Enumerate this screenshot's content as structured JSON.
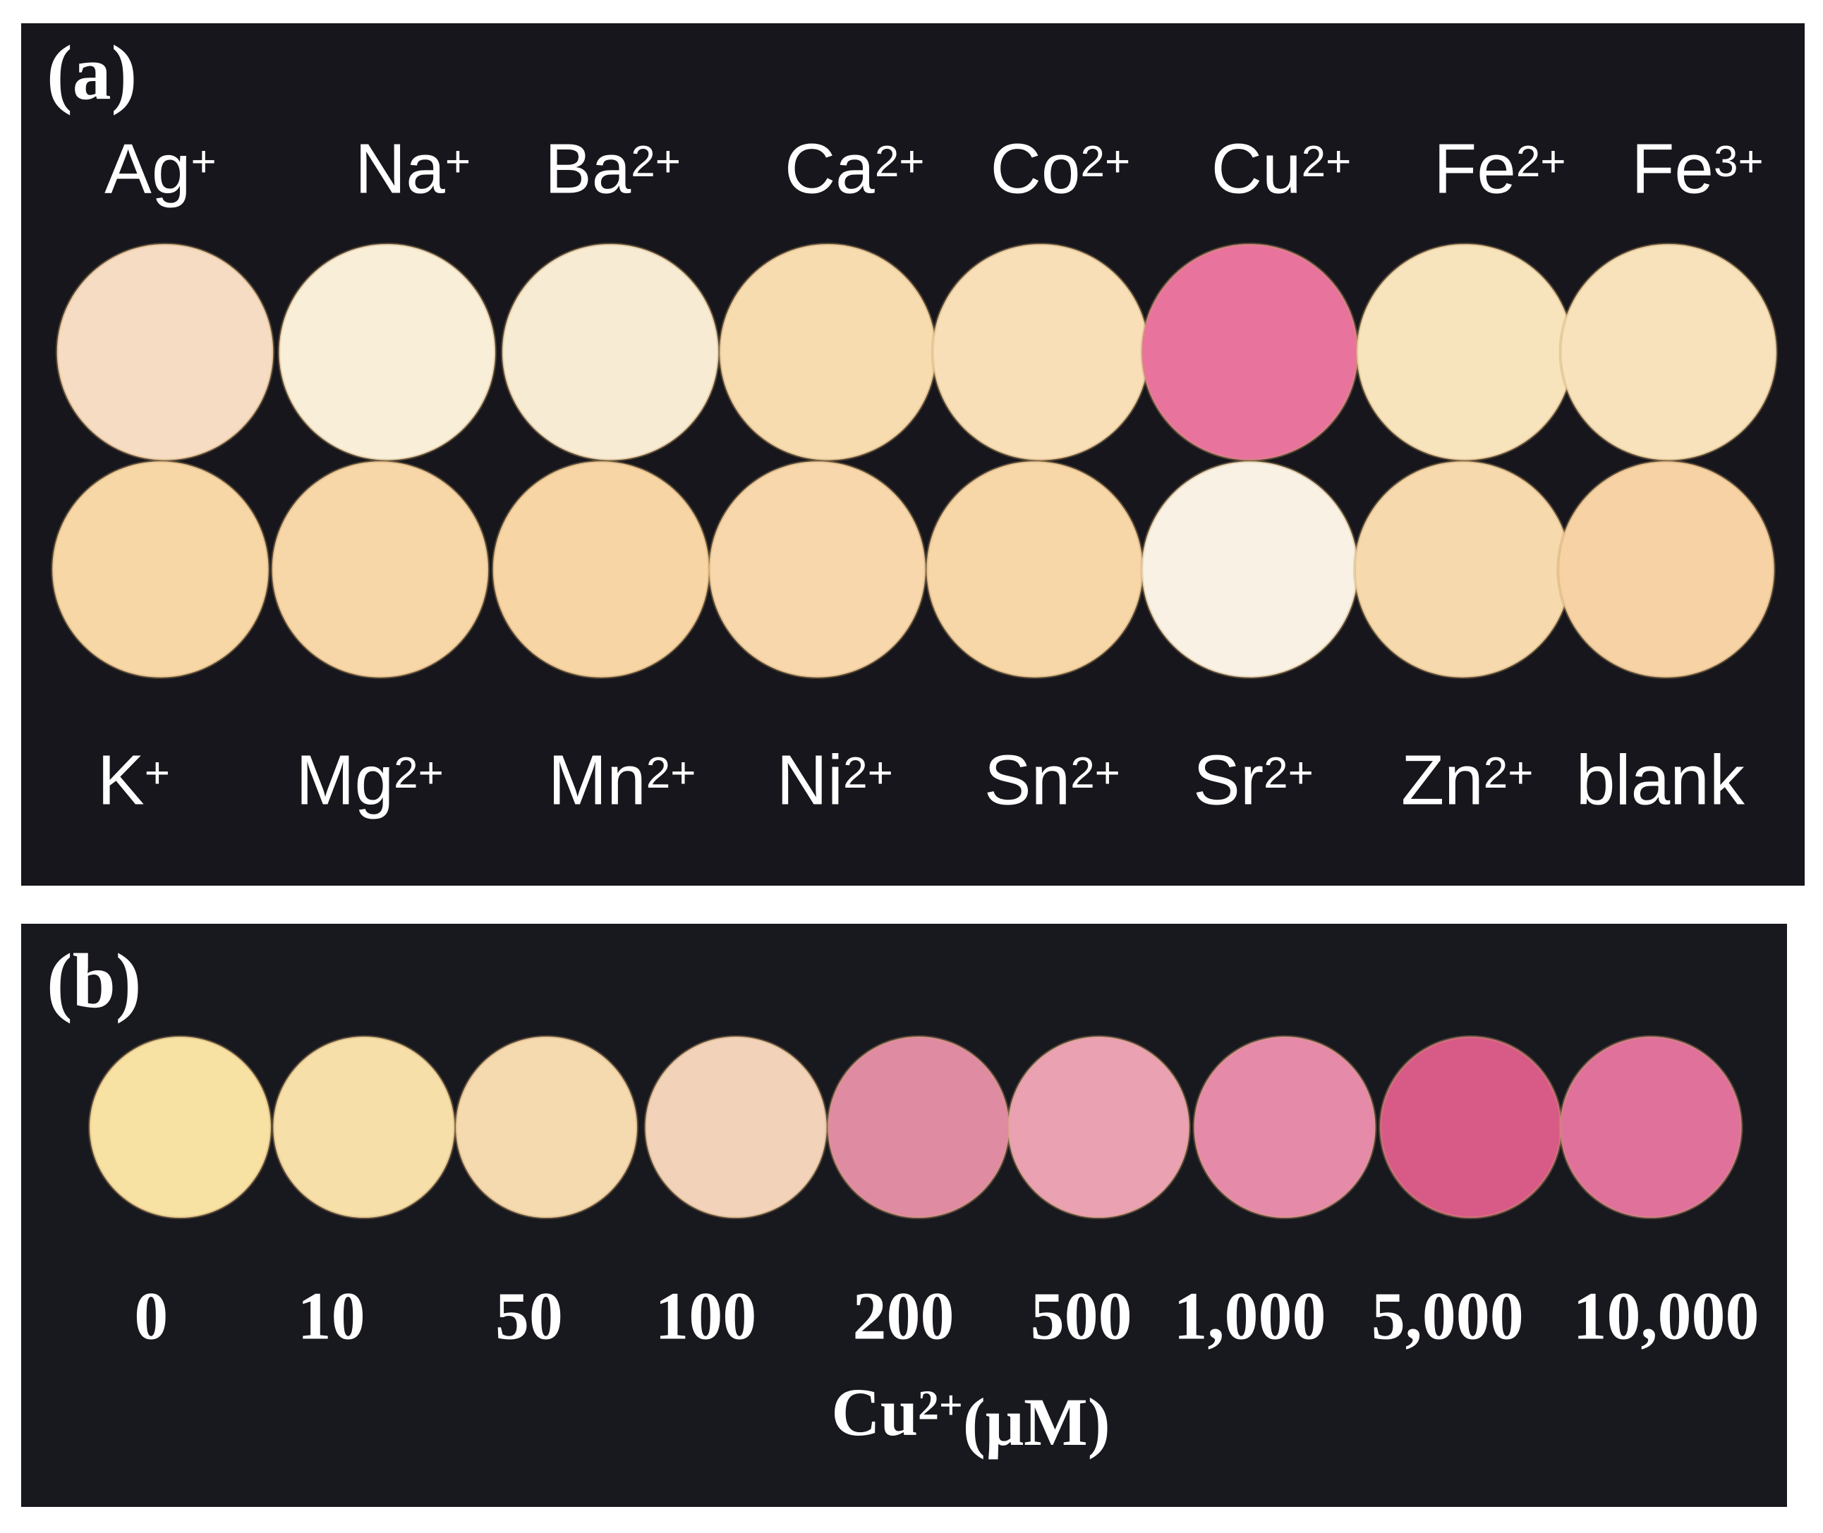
{
  "panel_a": {
    "label": "(a)",
    "top_labels": [
      {
        "symbol": "Ag",
        "charge": "+"
      },
      {
        "symbol": "Na",
        "charge": "+"
      },
      {
        "symbol": "Ba",
        "charge": "2+"
      },
      {
        "symbol": "Ca",
        "charge": "2+"
      },
      {
        "symbol": "Co",
        "charge": "2+"
      },
      {
        "symbol": "Cu",
        "charge": "2+"
      },
      {
        "symbol": "Fe",
        "charge": "2+"
      },
      {
        "symbol": "Fe",
        "charge": "3+"
      }
    ],
    "bottom_labels": [
      {
        "symbol": "K",
        "charge": "+"
      },
      {
        "symbol": "Mg",
        "charge": "2+"
      },
      {
        "symbol": "Mn",
        "charge": "2+"
      },
      {
        "symbol": "Ni",
        "charge": "2+"
      },
      {
        "symbol": "Sn",
        "charge": "2+"
      },
      {
        "symbol": "Sr",
        "charge": "2+"
      },
      {
        "symbol": "Zn",
        "charge": "2+"
      },
      {
        "symbol": "blank"
      }
    ]
  },
  "panel_b": {
    "label": "(b)",
    "concentrations": [
      "0",
      "10",
      "50",
      "100",
      "200",
      "500",
      "1,000",
      "5,000",
      "10,000"
    ],
    "axis_label": {
      "symbol": "Cu",
      "charge": "2+",
      "unit": "(μM)"
    }
  }
}
